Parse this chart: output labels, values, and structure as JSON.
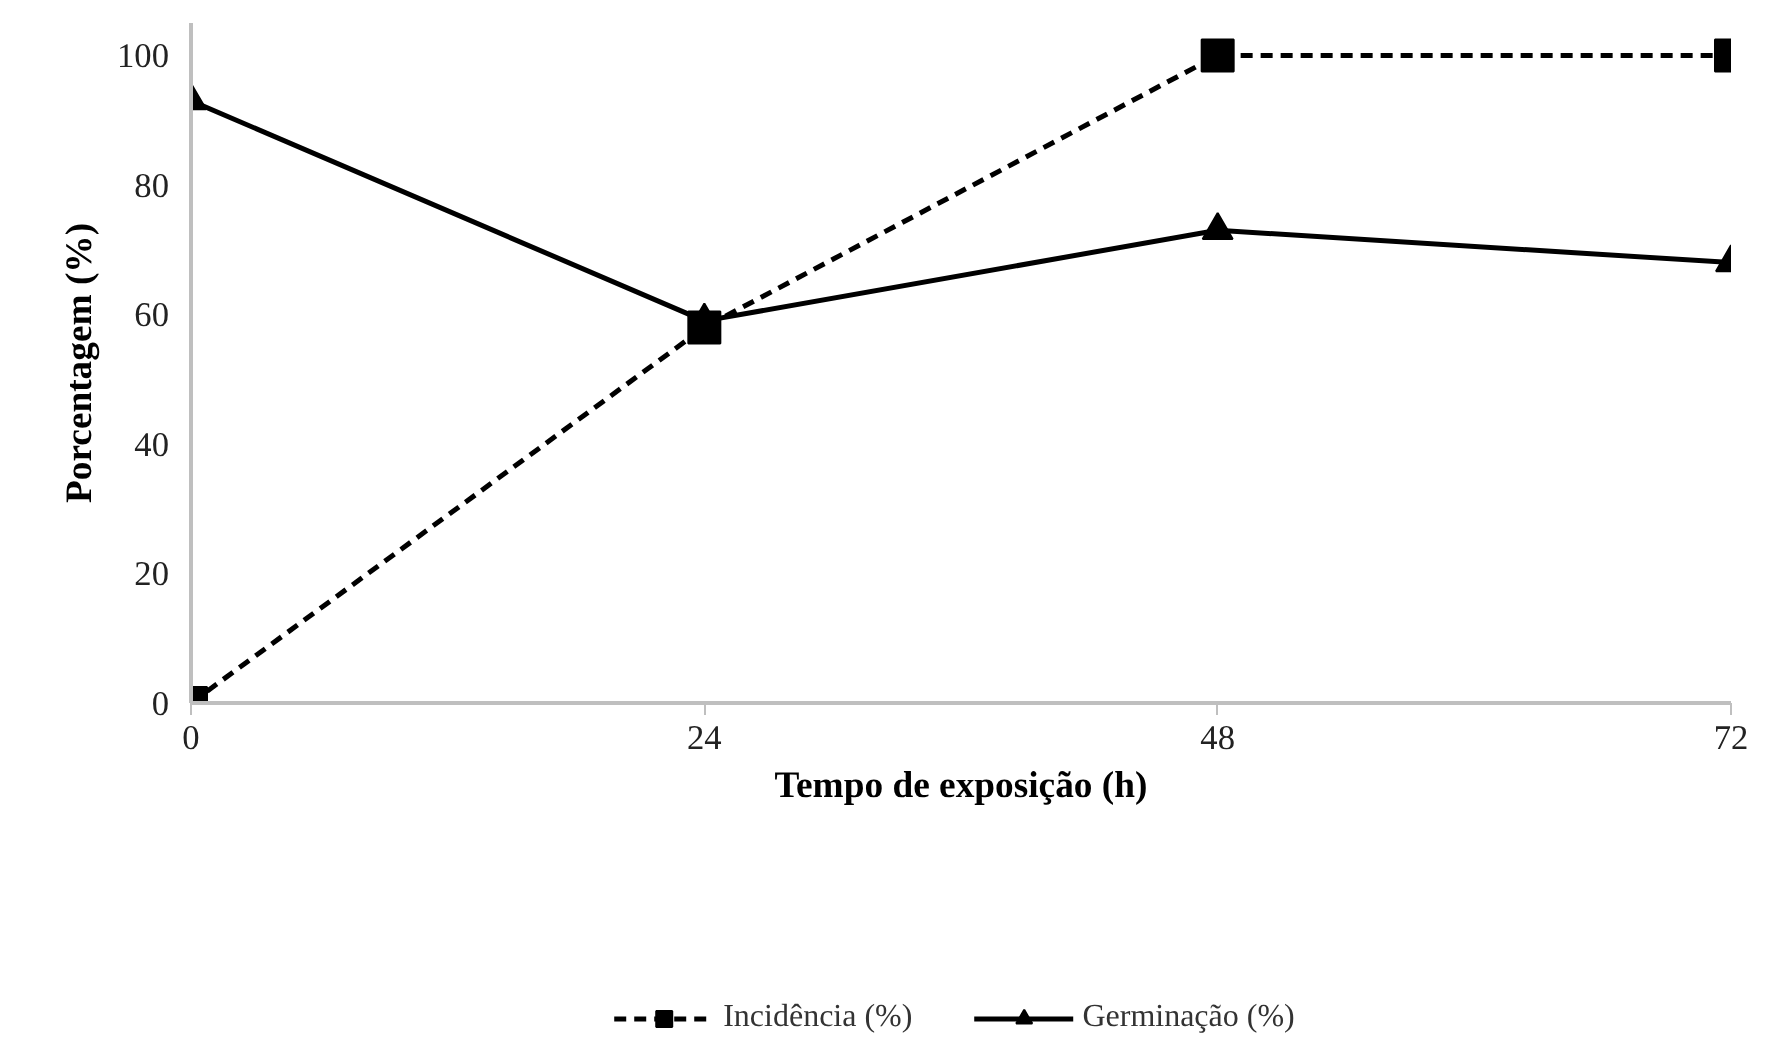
{
  "chart_data": {
    "type": "line",
    "xlabel": "Tempo de exposição (h)",
    "ylabel": "Porcentagem (%)",
    "x": [
      0,
      24,
      48,
      72
    ],
    "xlim": [
      0,
      72
    ],
    "xticks": [
      0,
      24,
      48,
      72
    ],
    "ylim": [
      0,
      105
    ],
    "yticks": [
      0,
      20,
      40,
      60,
      80,
      100
    ],
    "grid": false,
    "legend": "bottom",
    "series": [
      {
        "name": "Incidência (%)",
        "color": "#000000",
        "marker": "square",
        "line_style": "dashed",
        "values": [
          0,
          58,
          100,
          100
        ]
      },
      {
        "name": "Germinação (%)",
        "color": "#000000",
        "marker": "triangle",
        "line_style": "solid",
        "values": [
          93,
          59,
          73,
          68
        ]
      }
    ]
  }
}
